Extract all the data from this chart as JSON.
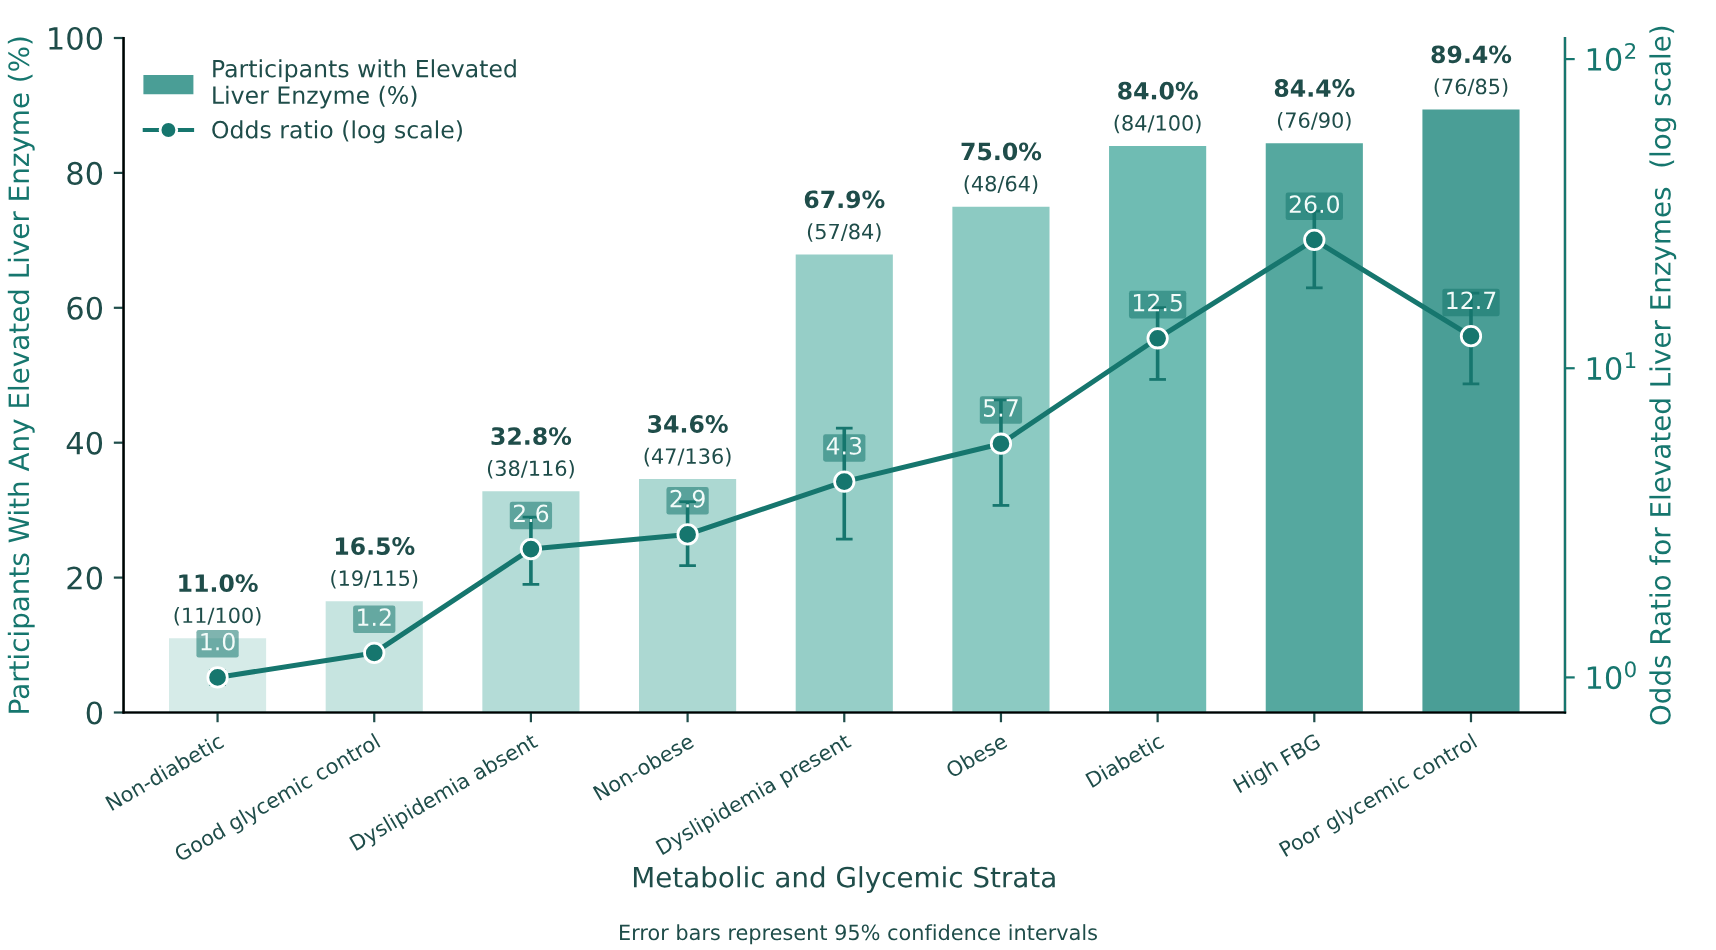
{
  "chart_data": {
    "type": "bar",
    "xlabel": "Metabolic and Glycemic Strata",
    "ylabel": "Participants With Any Elevated Liver Enzyme (%)",
    "y2label": "Odds Ratio for Elevated Liver Enzymes  (log scale)",
    "categories": [
      "Non-diabetic",
      "Good glycemic control",
      "Dyslipidemia absent",
      "Non-obese",
      "Dyslipidemia present",
      "Obese",
      "Diabetic",
      "High FBG",
      "Poor glycemic control"
    ],
    "series": [
      {
        "name": "Participants with Elevated Liver Enzyme (%)",
        "color": "#4a9e96",
        "colors": [
          "#d6ebe8",
          "#c6e4e0",
          "#b4dcd7",
          "#acd8d2",
          "#96cec7",
          "#8ccac2",
          "#6fbcb3",
          "#55a89f",
          "#4a9e96"
        ],
        "values": [
          11.0,
          16.5,
          32.8,
          34.6,
          67.9,
          75.0,
          84.0,
          84.4,
          89.4
        ],
        "value_labels": [
          "11.0%\n(11/100)",
          "16.5%\n(19/115)",
          "32.8%\n(38/116)",
          "34.6%\n(47/136)",
          "67.9%\n(57/84)",
          "75.0%\n(48/64)",
          "84.0%\n(84/100)",
          "84.4%\n(76/90)",
          "89.4%\n(76/85)"
        ]
      },
      {
        "name": "Odds ratio (log scale)",
        "type": "line",
        "axis": "y2",
        "color": "#16766e",
        "marker": "circle",
        "values": [
          1.0,
          1.2,
          2.6,
          2.9,
          4.3,
          5.7,
          12.5,
          26.0,
          12.7
        ],
        "value_labels": [
          "1.0",
          "1.2",
          "2.6",
          "2.9",
          "4.3",
          "5.7",
          "12.5",
          "26.0",
          "12.7"
        ],
        "errors": [
          [
            0.95,
            1.05
          ],
          null,
          [
            2.0,
            3.3
          ],
          [
            2.3,
            3.7
          ],
          [
            2.8,
            6.4
          ],
          [
            3.6,
            7.9
          ],
          [
            9.2,
            15.7
          ],
          [
            18.2,
            32.2
          ],
          [
            8.9,
            17.5
          ]
        ]
      }
    ],
    "ylim": [
      0,
      100
    ],
    "yticks": [
      0,
      20,
      40,
      60,
      80,
      100
    ],
    "log": "y2",
    "y2lim": [
      0.77,
      117
    ],
    "y2ticks": [
      {
        "value": 1,
        "label": "10$^{0}$"
      },
      {
        "value": 10,
        "label": "10$^{1}$"
      },
      {
        "value": 100,
        "label": "10$^{2}$"
      }
    ],
    "grid": false,
    "legend": "top left",
    "annotations": [
      "Error bars represent 95% confidence intervals"
    ]
  }
}
